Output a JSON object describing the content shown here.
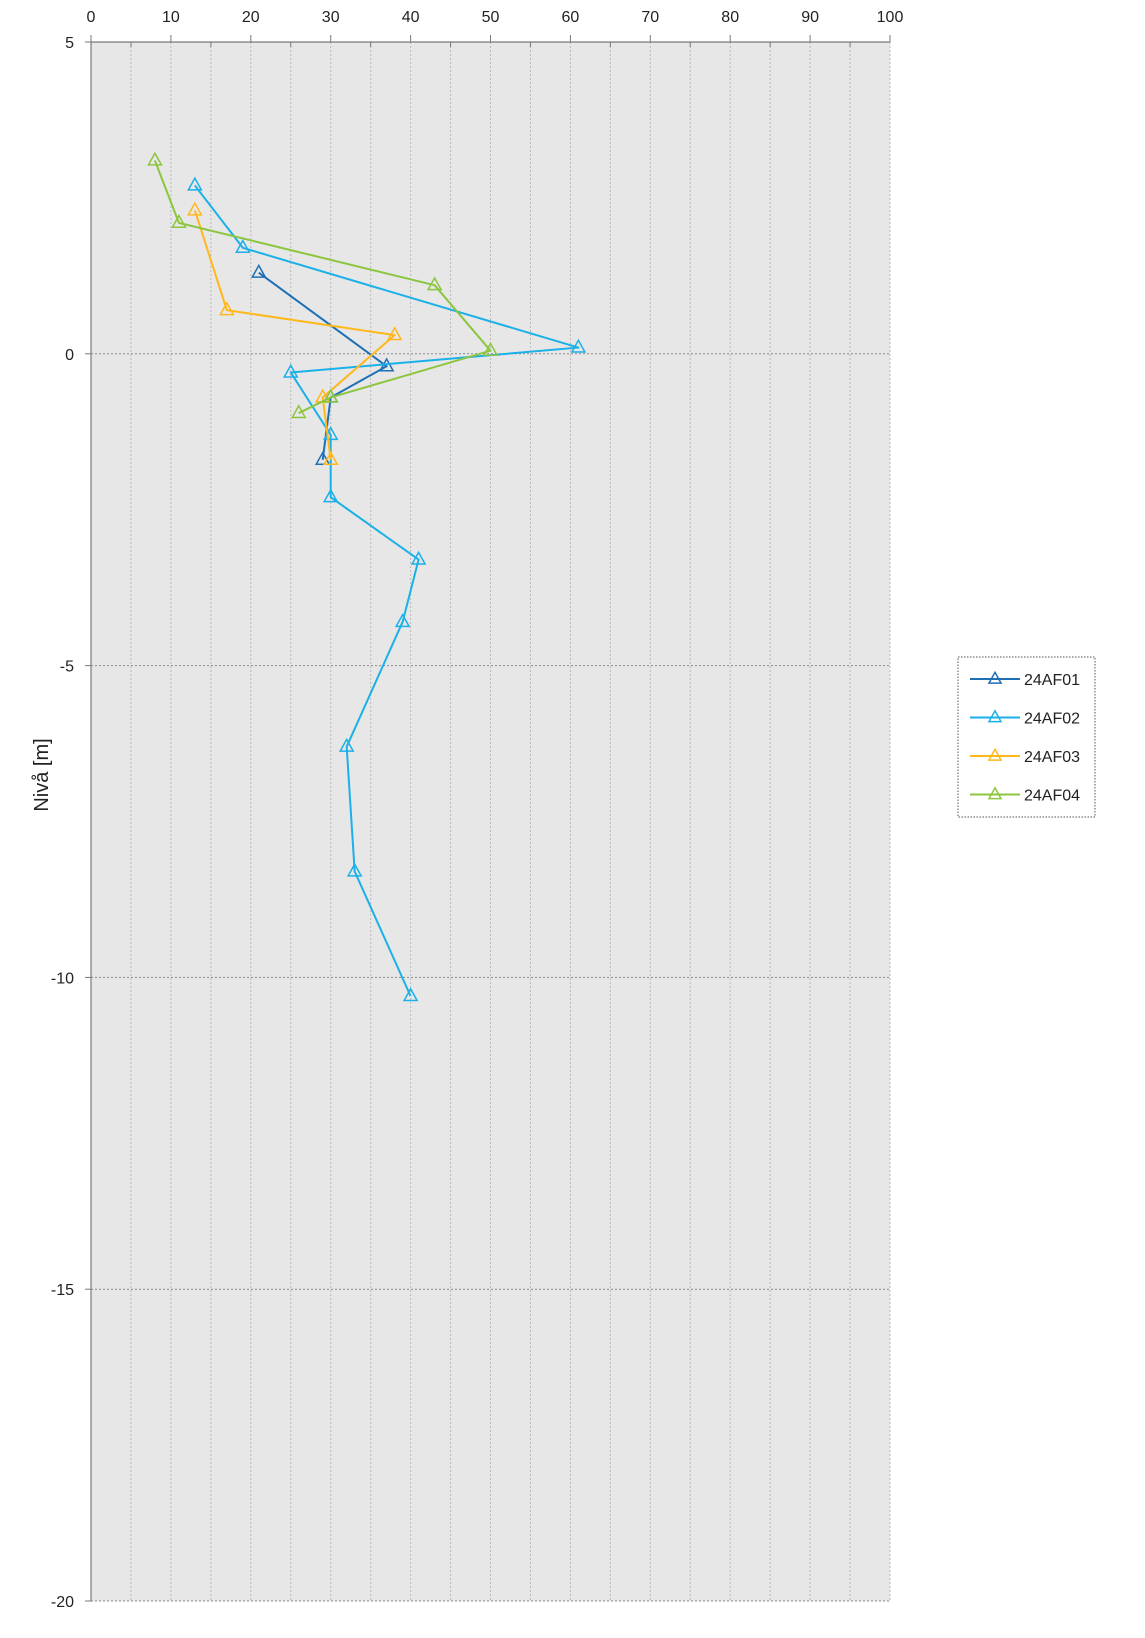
{
  "chart_data": {
    "type": "line",
    "title": "",
    "xlabel": "",
    "ylabel": "Nivå [m]",
    "xlim": [
      0,
      100
    ],
    "ylim": [
      -20,
      5
    ],
    "x_ticks": [
      "0",
      "10",
      "20",
      "30",
      "40",
      "50",
      "60",
      "70",
      "80",
      "90",
      "100"
    ],
    "y_ticks": [
      "5",
      "0",
      "-5",
      "-10",
      "-15",
      "-20"
    ],
    "x_axis_position": "top",
    "grid": true,
    "legend_position": "right",
    "marker": "open-triangle",
    "series": [
      {
        "name": "24AF01",
        "color": "#1f6fb5",
        "points": [
          [
            21,
            1.3
          ],
          [
            37,
            -0.2
          ],
          [
            30,
            -0.7
          ],
          [
            29,
            -1.7
          ]
        ]
      },
      {
        "name": "24AF02",
        "color": "#1ab0e8",
        "points": [
          [
            13,
            2.7
          ],
          [
            19,
            1.7
          ],
          [
            61,
            0.1
          ],
          [
            25,
            -0.3
          ],
          [
            30,
            -1.3
          ],
          [
            30,
            -2.3
          ],
          [
            41,
            -3.3
          ],
          [
            39,
            -4.3
          ],
          [
            32,
            -6.3
          ],
          [
            33,
            -8.3
          ],
          [
            40,
            -10.3
          ]
        ]
      },
      {
        "name": "24AF03",
        "color": "#ffb81c",
        "points": [
          [
            13,
            2.3
          ],
          [
            17,
            0.7
          ],
          [
            38,
            0.3
          ],
          [
            29,
            -0.7
          ],
          [
            30,
            -1.7
          ]
        ]
      },
      {
        "name": "24AF04",
        "color": "#8cc63f",
        "points": [
          [
            8,
            3.1
          ],
          [
            11,
            2.1
          ],
          [
            43,
            1.1
          ],
          [
            50,
            0.05
          ],
          [
            30,
            -0.7
          ],
          [
            26,
            -0.95
          ]
        ]
      }
    ]
  }
}
